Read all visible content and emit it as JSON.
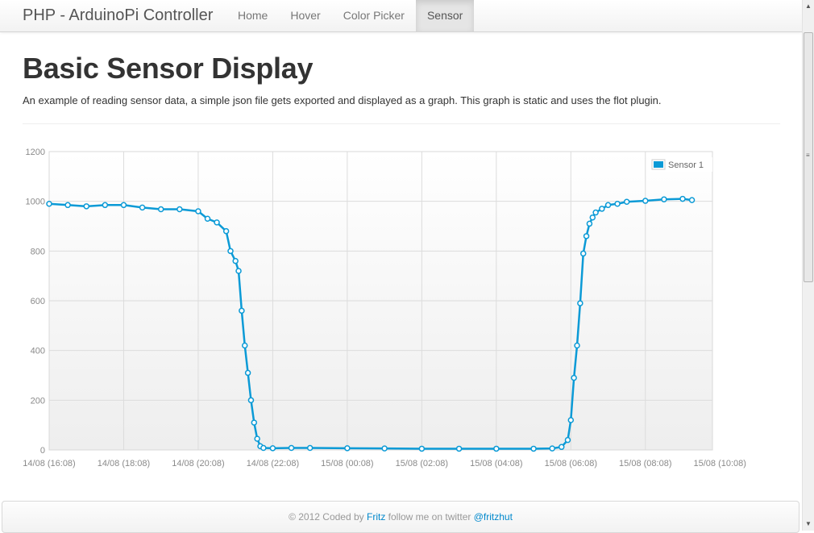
{
  "navbar": {
    "brand": "PHP - ArduinoPi Controller",
    "items": [
      {
        "label": "Home",
        "active": false
      },
      {
        "label": "Hover",
        "active": false
      },
      {
        "label": "Color Picker",
        "active": false
      },
      {
        "label": "Sensor",
        "active": true
      }
    ]
  },
  "main": {
    "title": "Basic Sensor Display",
    "lead": "An example of reading sensor data, a simple json file gets exported and displayed as a graph. This graph is static and uses the flot plugin."
  },
  "footer": {
    "prefix": "© 2012 Coded by ",
    "author_link": "Fritz",
    "middle": " follow me on twitter ",
    "twitter_link": "@fritzhut"
  },
  "colors": {
    "series": "#0b9ad6",
    "active_nav": "#e5e5e5",
    "link": "#0088cc"
  },
  "chart_data": {
    "type": "line",
    "title": "",
    "xlabel": "",
    "ylabel": "",
    "ylim": [
      0,
      1200
    ],
    "xlim": [
      "14/08 (16:08)",
      "15/08 (10:08)"
    ],
    "x_ticks": [
      "14/08 (16:08)",
      "14/08 (18:08)",
      "14/08 (20:08)",
      "14/08 (22:08)",
      "15/08 (00:08)",
      "15/08 (02:08)",
      "15/08 (04:08)",
      "15/08 (06:08)",
      "15/08 (08:08)",
      "15/08 (10:08)"
    ],
    "y_ticks": [
      0,
      200,
      400,
      600,
      800,
      1000,
      1200
    ],
    "grid": true,
    "legend_position": "top-right",
    "series": [
      {
        "name": "Sensor 1",
        "x": [
          "14/08 16:08",
          "14/08 16:38",
          "14/08 17:08",
          "14/08 17:38",
          "14/08 18:08",
          "14/08 18:38",
          "14/08 19:08",
          "14/08 19:38",
          "14/08 20:08",
          "14/08 20:23",
          "14/08 20:38",
          "14/08 20:53",
          "14/08 21:00",
          "14/08 21:08",
          "14/08 21:13",
          "14/08 21:18",
          "14/08 21:23",
          "14/08 21:28",
          "14/08 21:33",
          "14/08 21:38",
          "14/08 21:43",
          "14/08 21:48",
          "14/08 21:53",
          "14/08 22:08",
          "14/08 22:38",
          "14/08 23:08",
          "15/08 00:08",
          "15/08 01:08",
          "15/08 02:08",
          "15/08 03:08",
          "15/08 04:08",
          "15/08 05:08",
          "15/08 05:38",
          "15/08 05:53",
          "15/08 06:03",
          "15/08 06:08",
          "15/08 06:13",
          "15/08 06:18",
          "15/08 06:23",
          "15/08 06:28",
          "15/08 06:33",
          "15/08 06:38",
          "15/08 06:43",
          "15/08 06:48",
          "15/08 06:58",
          "15/08 07:08",
          "15/08 07:23",
          "15/08 07:38",
          "15/08 08:08",
          "15/08 08:38",
          "15/08 09:08",
          "15/08 09:23"
        ],
        "values": [
          990,
          985,
          980,
          985,
          985,
          975,
          968,
          968,
          960,
          930,
          915,
          880,
          800,
          760,
          720,
          560,
          420,
          310,
          200,
          110,
          45,
          15,
          8,
          7,
          8,
          8,
          7,
          6,
          5,
          5,
          5,
          5,
          6,
          12,
          40,
          120,
          290,
          420,
          590,
          790,
          860,
          910,
          935,
          955,
          970,
          985,
          990,
          998,
          1002,
          1008,
          1010,
          1005
        ]
      }
    ]
  }
}
